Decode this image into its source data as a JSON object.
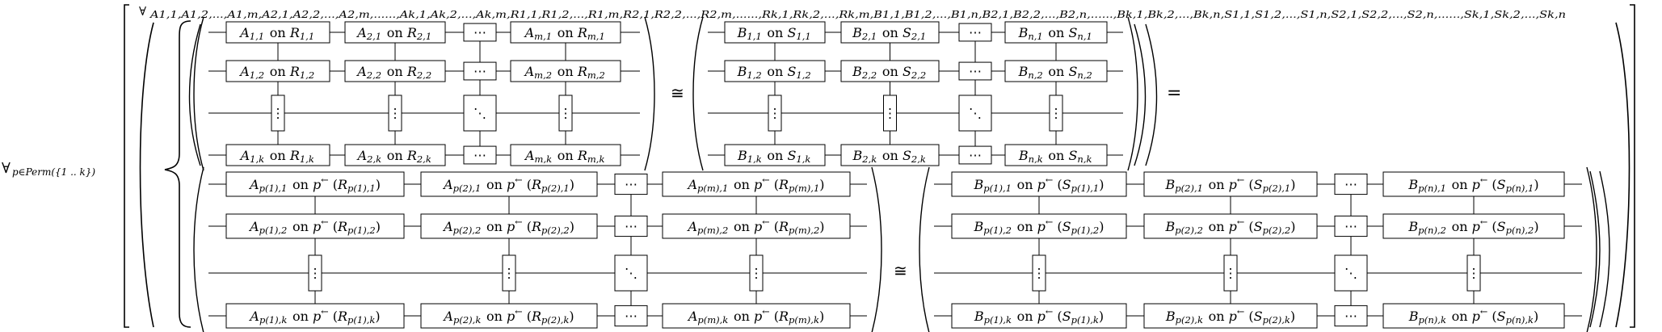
{
  "outer_quantifier": {
    "forall": "∀",
    "subscript": "p∈Perm({1 .. k})"
  },
  "inner_quantifier": {
    "forall": "∀",
    "subscript": "A1,1,A1,2,...,A1,m,A2,1,A2,2,...,A2,m,......,Ak,1,Ak,2,...,Ak,m,R1,1,R1,2,...,R1,m,R2,1,R2,2,...,R2,m,......,Rk,1,Rk,2,...,Rk,m,B1,1,B1,2,...,B1,n,B2,1,B2,2,...,B2,n,......,Bk,1,Bk,2,...,Bk,n,S1,1,S1,2,...,S1,n,S2,1,S2,2,...,S2,n,......,Sk,1,Sk,2,...,Sk,n"
  },
  "relations": {
    "iso": "≅",
    "eq": "="
  },
  "glyphs": {
    "hdots": "⋯",
    "vdots": "⋮",
    "ddots": "⋱",
    "on": "on",
    "inv": "p←"
  },
  "top_left": {
    "rows": [
      [
        "A1,1 on R1,1",
        "A2,1 on R2,1",
        "Am,1 on Rm,1"
      ],
      [
        "A1,2 on R1,2",
        "A2,2 on R2,2",
        "Am,2 on Rm,2"
      ],
      [
        "A1,k on R1,k",
        "A2,k on R2,k",
        "Am,k on Rm,k"
      ]
    ]
  },
  "top_right": {
    "rows": [
      [
        "B1,1 on S1,1",
        "B2,1 on S2,1",
        "Bn,1 on Sn,1"
      ],
      [
        "B1,2 on S1,2",
        "B2,2 on S2,2",
        "Bn,2 on Sn,2"
      ],
      [
        "B1,k on S1,k",
        "B2,k on S2,k",
        "Bn,k on Sn,k"
      ]
    ]
  },
  "bottom_left": {
    "rows": [
      [
        "Ap(1),1 on p←(Rp(1),1)",
        "Ap(2),1 on p←(Rp(2),1)",
        "Ap(m),1 on p←(Rp(m),1)"
      ],
      [
        "Ap(1),2 on p←(Rp(1),2)",
        "Ap(2),2 on p←(Rp(2),2)",
        "Ap(m),2 on p←(Rp(m),2)"
      ],
      [
        "Ap(1),k on p←(Rp(1),k)",
        "Ap(2),k on p←(Rp(2),k)",
        "Ap(m),k on p←(Rp(m),k)"
      ]
    ]
  },
  "bottom_right": {
    "rows": [
      [
        "Bp(1),1 on p←(Sp(1),1)",
        "Bp(2),1 on p←(Sp(2),1)",
        "Bp(n),1 on p←(Sp(n),1)"
      ],
      [
        "Bp(1),2 on p←(Sp(1),2)",
        "Bp(2),2 on p←(Sp(2),2)",
        "Bp(n),2 on p←(Sp(n),2)"
      ],
      [
        "Bp(1),k on p←(Sp(1),k)",
        "Bp(2),k on p←(Sp(2),k)",
        "Bp(n),k on p←(Sp(n),k)"
      ]
    ]
  }
}
